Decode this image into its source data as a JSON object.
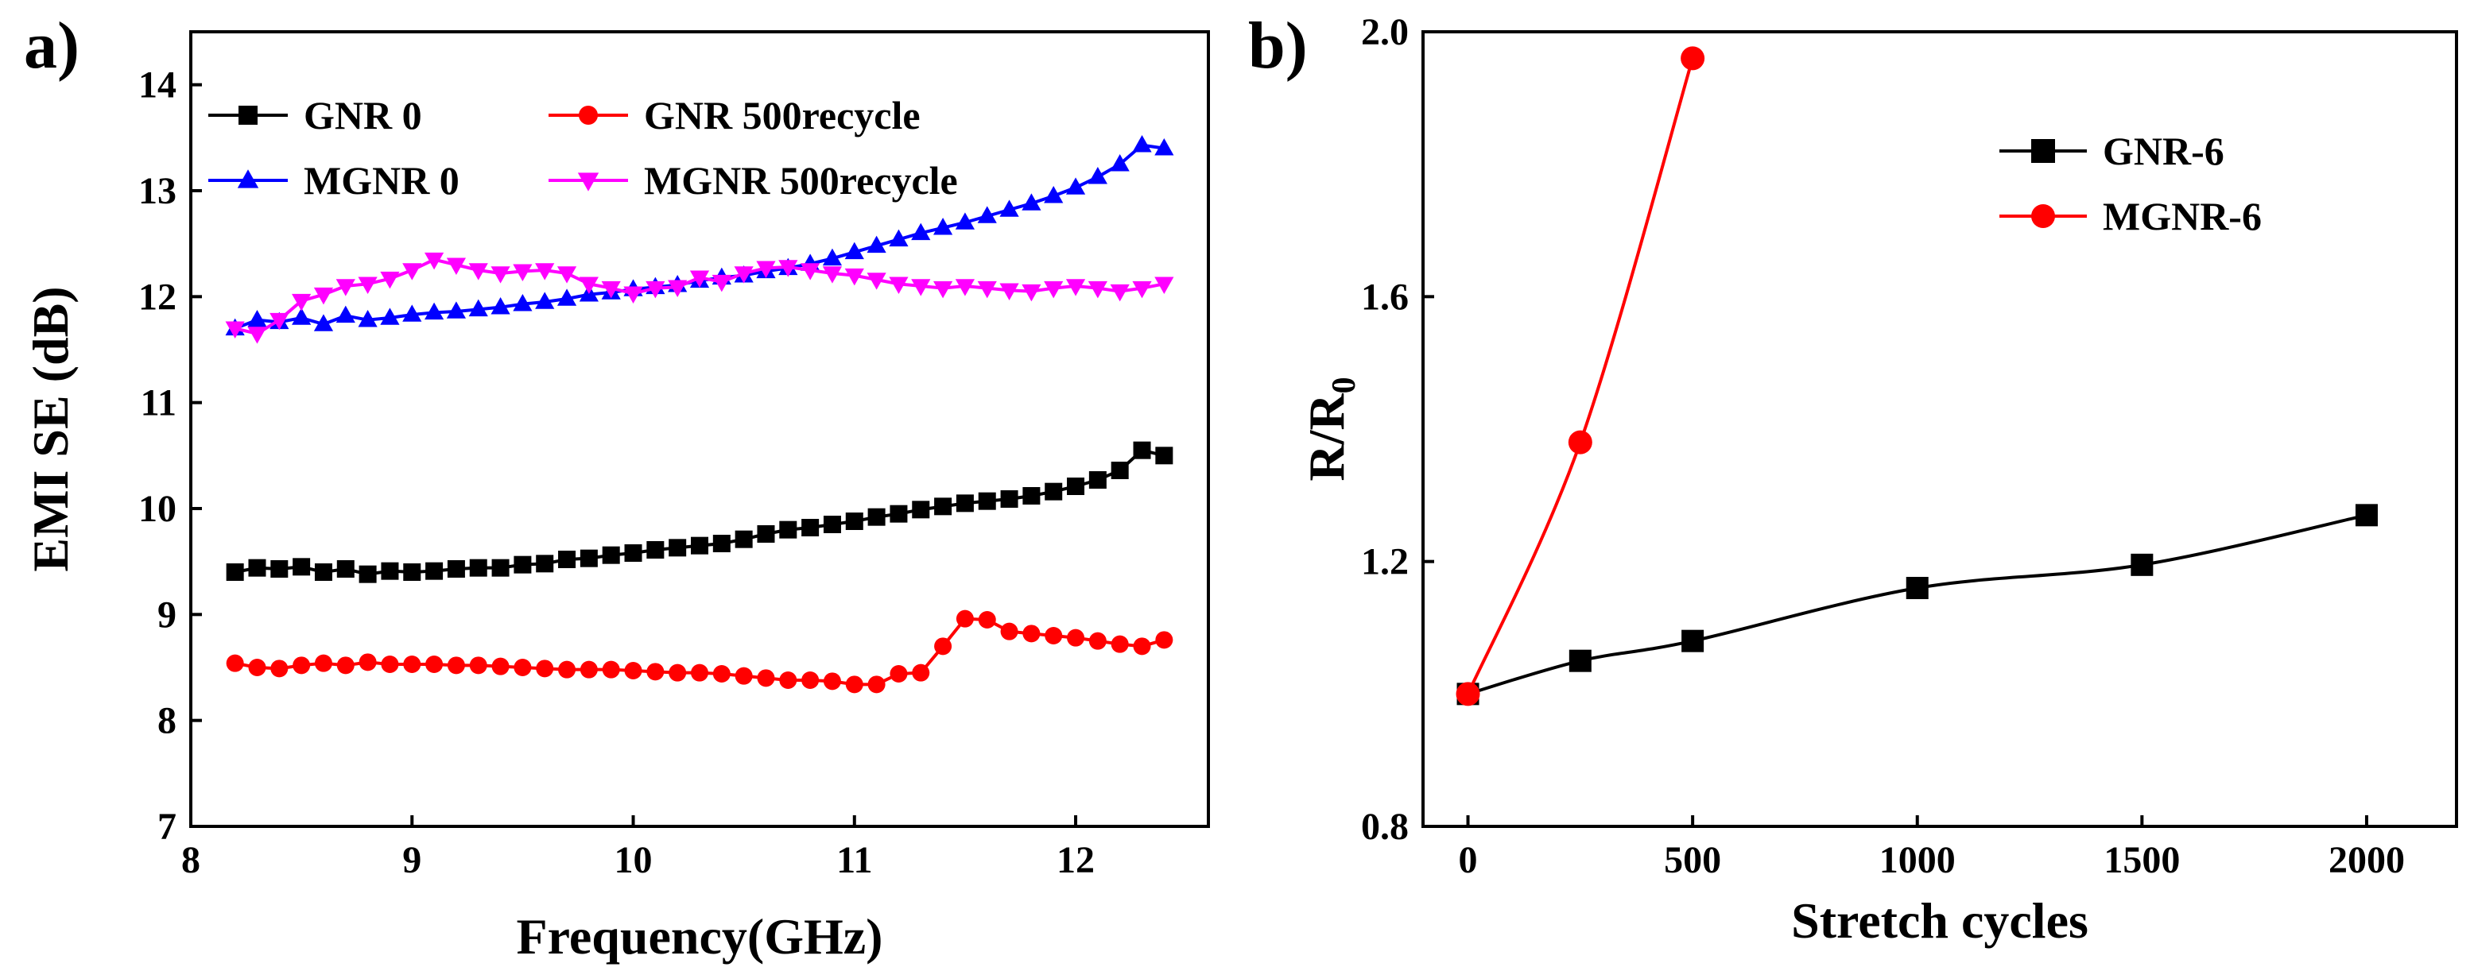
{
  "chart_data": [
    {
      "type": "line",
      "panel_label": "a)",
      "xlabel": "Frequency(GHz)",
      "ylabel": "EMI SE (dB)",
      "xlim": [
        8,
        12.6
      ],
      "ylim": [
        7,
        14.5
      ],
      "xticks": [
        8,
        9,
        10,
        11,
        12
      ],
      "yticks": [
        7,
        8,
        9,
        10,
        11,
        12,
        13,
        14
      ],
      "legend_position": "top",
      "x": [
        8.2,
        8.3,
        8.4,
        8.5,
        8.6,
        8.7,
        8.8,
        8.9,
        9.0,
        9.1,
        9.2,
        9.3,
        9.4,
        9.5,
        9.6,
        9.7,
        9.8,
        9.9,
        10.0,
        10.1,
        10.2,
        10.3,
        10.4,
        10.5,
        10.6,
        10.7,
        10.8,
        10.9,
        11.0,
        11.1,
        11.2,
        11.3,
        11.4,
        11.5,
        11.6,
        11.7,
        11.8,
        11.9,
        12.0,
        12.1,
        12.2,
        12.3,
        12.4
      ],
      "series": [
        {
          "name": "GNR 0",
          "color": "#000000",
          "marker": "square",
          "values": [
            9.4,
            9.44,
            9.43,
            9.45,
            9.4,
            9.43,
            9.38,
            9.41,
            9.4,
            9.41,
            9.43,
            9.44,
            9.44,
            9.47,
            9.48,
            9.52,
            9.53,
            9.56,
            9.58,
            9.61,
            9.63,
            9.65,
            9.67,
            9.71,
            9.76,
            9.8,
            9.82,
            9.85,
            9.88,
            9.92,
            9.95,
            9.99,
            10.02,
            10.05,
            10.07,
            10.09,
            10.12,
            10.16,
            10.21,
            10.27,
            10.36,
            10.55,
            10.5
          ]
        },
        {
          "name": "GNR 500recycle",
          "color": "#ff0000",
          "marker": "circle",
          "values": [
            8.54,
            8.5,
            8.49,
            8.52,
            8.54,
            8.52,
            8.55,
            8.53,
            8.53,
            8.53,
            8.52,
            8.52,
            8.51,
            8.5,
            8.49,
            8.48,
            8.48,
            8.48,
            8.47,
            8.46,
            8.45,
            8.45,
            8.44,
            8.42,
            8.4,
            8.38,
            8.38,
            8.37,
            8.34,
            8.34,
            8.44,
            8.45,
            8.7,
            8.96,
            8.95,
            8.84,
            8.82,
            8.8,
            8.78,
            8.75,
            8.72,
            8.7,
            8.76
          ]
        },
        {
          "name": "MGNR 0",
          "color": "#0000ff",
          "marker": "triangle-up",
          "values": [
            11.7,
            11.78,
            11.76,
            11.8,
            11.74,
            11.82,
            11.78,
            11.8,
            11.83,
            11.85,
            11.86,
            11.88,
            11.9,
            11.93,
            11.95,
            11.98,
            12.02,
            12.04,
            12.07,
            12.09,
            12.11,
            12.15,
            12.18,
            12.2,
            12.24,
            12.27,
            12.31,
            12.36,
            12.42,
            12.48,
            12.54,
            12.6,
            12.65,
            12.7,
            12.76,
            12.82,
            12.88,
            12.95,
            13.03,
            13.13,
            13.25,
            13.43,
            13.4
          ]
        },
        {
          "name": "MGNR  500recycle",
          "color": "#ff00ff",
          "marker": "triangle-down",
          "values": [
            11.7,
            11.65,
            11.78,
            11.96,
            12.02,
            12.1,
            12.12,
            12.17,
            12.25,
            12.35,
            12.3,
            12.25,
            12.22,
            12.24,
            12.25,
            12.22,
            12.12,
            12.08,
            12.03,
            12.08,
            12.09,
            12.18,
            12.14,
            12.22,
            12.27,
            12.28,
            12.25,
            12.22,
            12.2,
            12.16,
            12.12,
            12.1,
            12.08,
            12.1,
            12.08,
            12.06,
            12.05,
            12.08,
            12.1,
            12.08,
            12.05,
            12.08,
            12.12
          ]
        }
      ]
    },
    {
      "type": "line",
      "panel_label": "b)",
      "xlabel": "Stretch cycles",
      "ylabel_main": "R/R",
      "ylabel_sub": "0",
      "xlim": [
        -100,
        2200
      ],
      "ylim": [
        0.8,
        2.0
      ],
      "xticks": [
        0,
        500,
        1000,
        1500,
        2000
      ],
      "yticks": [
        0.8,
        1.2,
        1.6,
        2.0
      ],
      "ytick_labels": [
        "0.8",
        "1.2",
        "1.6",
        "2.0"
      ],
      "legend_position": "top-right",
      "series": [
        {
          "name": "GNR-6",
          "color": "#000000",
          "marker": "square",
          "x": [
            0,
            250,
            500,
            1000,
            1500,
            2000
          ],
          "values": [
            1.0,
            1.05,
            1.08,
            1.16,
            1.195,
            1.27
          ]
        },
        {
          "name": "MGNR-6",
          "color": "#ff0000",
          "marker": "circle",
          "x": [
            0,
            250,
            500
          ],
          "values": [
            1.0,
            1.38,
            1.96
          ]
        }
      ]
    }
  ]
}
